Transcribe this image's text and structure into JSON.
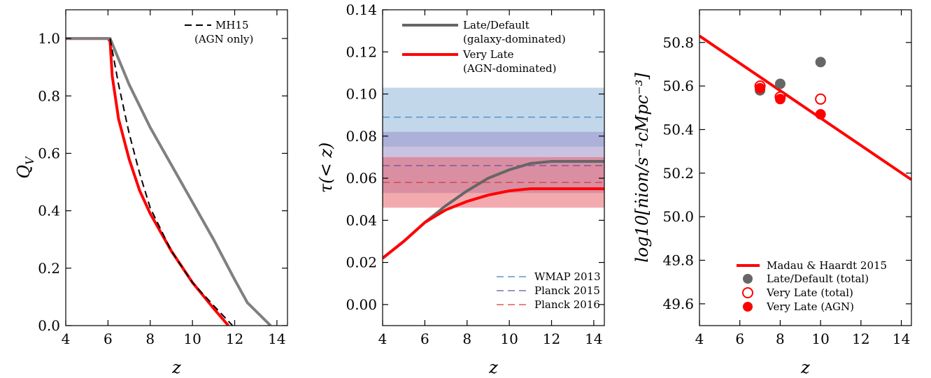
{
  "chart_data": [
    {
      "type": "line",
      "xlabel": "z",
      "ylabel": "Q_V",
      "xlim": [
        4,
        14.5
      ],
      "ylim": [
        0,
        1.1
      ],
      "xticks": [
        "4",
        "6",
        "8",
        "10",
        "12",
        "14"
      ],
      "yticks": [
        "0.0",
        "0.2",
        "0.4",
        "0.6",
        "0.8",
        "1.0"
      ],
      "legend": {
        "placement": "top-right",
        "entries": [
          "MH15",
          "(AGN only)"
        ]
      },
      "series": [
        {
          "name": "MH15 (AGN only)",
          "color": "#000000",
          "style": "dashed",
          "x": [
            6.1,
            6.5,
            7,
            7.5,
            8,
            9,
            10,
            11,
            11.9
          ],
          "y": [
            1.0,
            0.84,
            0.67,
            0.53,
            0.41,
            0.26,
            0.15,
            0.07,
            0.0
          ]
        },
        {
          "name": "",
          "color": "#808080",
          "style": "solid",
          "x": [
            4,
            6,
            6.1,
            7,
            8,
            9,
            10,
            11,
            12,
            12.6,
            13.7
          ],
          "y": [
            1.0,
            1.0,
            1.0,
            0.84,
            0.69,
            0.56,
            0.43,
            0.3,
            0.16,
            0.08,
            0.0
          ]
        },
        {
          "name": "",
          "color": "#ff0000",
          "style": "solid",
          "x": [
            4,
            6,
            6.1,
            6.2,
            6.5,
            7,
            7.5,
            8,
            9,
            10,
            11,
            11.7
          ],
          "y": [
            1.0,
            1.0,
            0.99,
            0.87,
            0.72,
            0.58,
            0.47,
            0.39,
            0.26,
            0.15,
            0.06,
            0.0
          ]
        }
      ]
    },
    {
      "type": "line",
      "xlabel": "z",
      "ylabel": "τ(< z)",
      "xlim": [
        4,
        14.5
      ],
      "ylim": [
        -0.01,
        0.14
      ],
      "xticks": [
        "4",
        "6",
        "8",
        "10",
        "12",
        "14"
      ],
      "yticks": [
        "0.00",
        "0.02",
        "0.04",
        "0.06",
        "0.08",
        "0.10",
        "0.12",
        "0.14"
      ],
      "bands": [
        {
          "name": "WMAP 2013",
          "center": 0.089,
          "lo": 0.075,
          "hi": 0.103,
          "color": "#8fb6d9"
        },
        {
          "name": "Planck 2015",
          "center": 0.066,
          "lo": 0.053,
          "hi": 0.082,
          "color": "#9c8fc9"
        },
        {
          "name": "Planck 2016",
          "center": 0.058,
          "lo": 0.046,
          "hi": 0.07,
          "color": "#e8646e"
        }
      ],
      "legend_lines": {
        "placement": "top-left",
        "entries": [
          "Late/Default",
          "(galaxy-dominated)",
          "Very Late",
          "(AGN-dominated)"
        ]
      },
      "legend_bands": {
        "placement": "bottom-right",
        "entries": [
          "WMAP 2013",
          "Planck 2015",
          "Planck 2016"
        ]
      },
      "series": [
        {
          "name": "Late/Default (galaxy-dominated)",
          "color": "#666666",
          "x": [
            4,
            5,
            6,
            6.5,
            7,
            8,
            9,
            10,
            11,
            12,
            13,
            14.5
          ],
          "y": [
            0.022,
            0.03,
            0.039,
            0.043,
            0.047,
            0.054,
            0.06,
            0.064,
            0.067,
            0.068,
            0.068,
            0.068
          ]
        },
        {
          "name": "Very Late (AGN-dominated)",
          "color": "#ff0000",
          "x": [
            4,
            5,
            6,
            6.5,
            7,
            8,
            9,
            10,
            11,
            11.5,
            12,
            14.5
          ],
          "y": [
            0.022,
            0.03,
            0.039,
            0.042,
            0.045,
            0.049,
            0.052,
            0.054,
            0.055,
            0.055,
            0.055,
            0.055
          ]
        }
      ]
    },
    {
      "type": "scatter",
      "xlabel": "z",
      "ylabel": "log10[ṅion/s⁻¹cMpc⁻³]",
      "xlim": [
        4,
        14.5
      ],
      "ylim": [
        49.5,
        50.95
      ],
      "xticks": [
        "4",
        "6",
        "8",
        "10",
        "12",
        "14"
      ],
      "yticks": [
        "49.6",
        "49.8",
        "50.0",
        "50.2",
        "50.4",
        "50.6",
        "50.8"
      ],
      "legend": {
        "placement": "bottom-right",
        "entries": [
          "Madau & Haardt 2015",
          "Late/Default (total)",
          "Very Late (total)",
          "Very Late (AGN)"
        ]
      },
      "line": {
        "name": "Madau & Haardt 2015",
        "color": "#ff0000",
        "x": [
          4,
          14.5
        ],
        "y": [
          50.83,
          50.17
        ]
      },
      "series": [
        {
          "name": "Late/Default (total)",
          "marker": "filled",
          "color": "#666666",
          "x": [
            7,
            8,
            10
          ],
          "y": [
            50.58,
            50.61,
            50.71
          ]
        },
        {
          "name": "Very Late (total)",
          "marker": "open",
          "color": "#ff0000",
          "x": [
            7,
            8,
            10
          ],
          "y": [
            50.6,
            50.55,
            50.54
          ]
        },
        {
          "name": "Very Late (AGN)",
          "marker": "filled",
          "color": "#ff0000",
          "x": [
            7,
            8,
            10
          ],
          "y": [
            50.59,
            50.54,
            50.47
          ]
        }
      ]
    }
  ]
}
